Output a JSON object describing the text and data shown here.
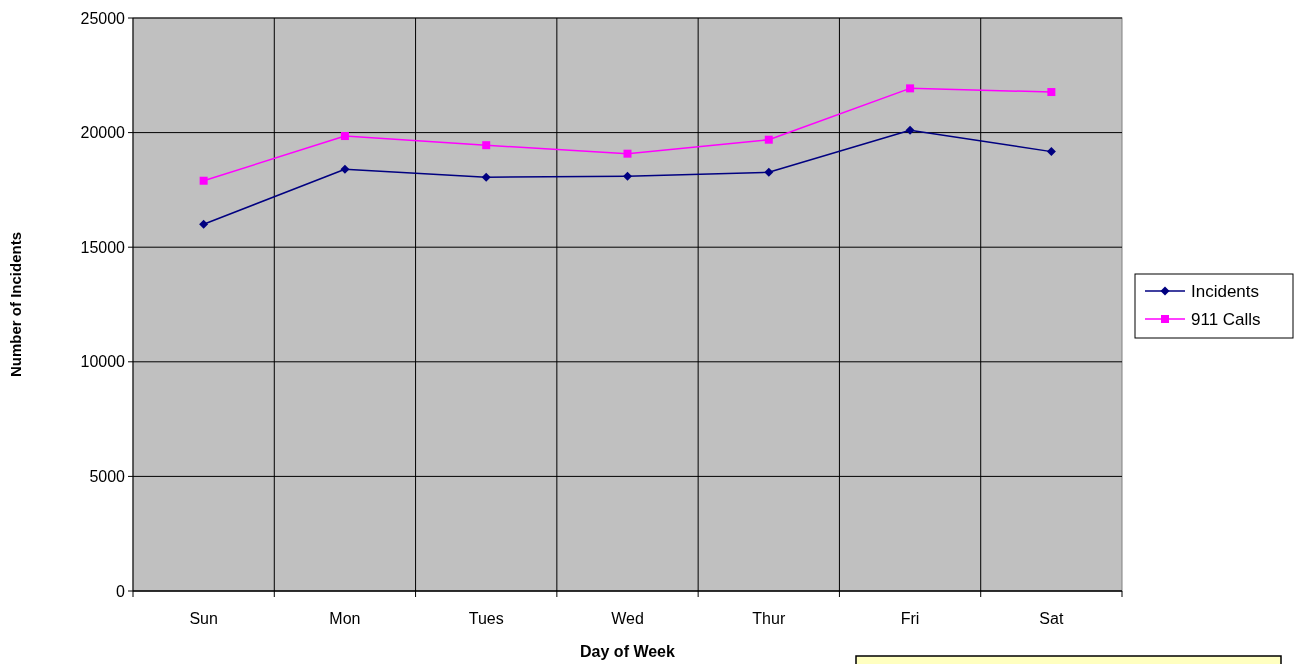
{
  "chart_data": {
    "type": "line",
    "xlabel": "Day of Week",
    "ylabel": "Number of Incidents",
    "categories": [
      "Sun",
      "Mon",
      "Tues",
      "Wed",
      "Thur",
      "Fri",
      "Sat"
    ],
    "series": [
      {
        "name": "Incidents",
        "color": "#000080",
        "marker": "diamond",
        "values": [
          16000,
          18400,
          18050,
          18100,
          18270,
          20100,
          19170
        ]
      },
      {
        "name": "911 Calls",
        "color": "#ff00ff",
        "marker": "square",
        "values": [
          17900,
          19850,
          19450,
          19080,
          19690,
          21930,
          21770
        ]
      }
    ],
    "ylim": [
      0,
      25000
    ],
    "yticks": [
      0,
      5000,
      10000,
      15000,
      20000,
      25000
    ],
    "grid": true,
    "legend": "right",
    "line_style": "solid"
  }
}
